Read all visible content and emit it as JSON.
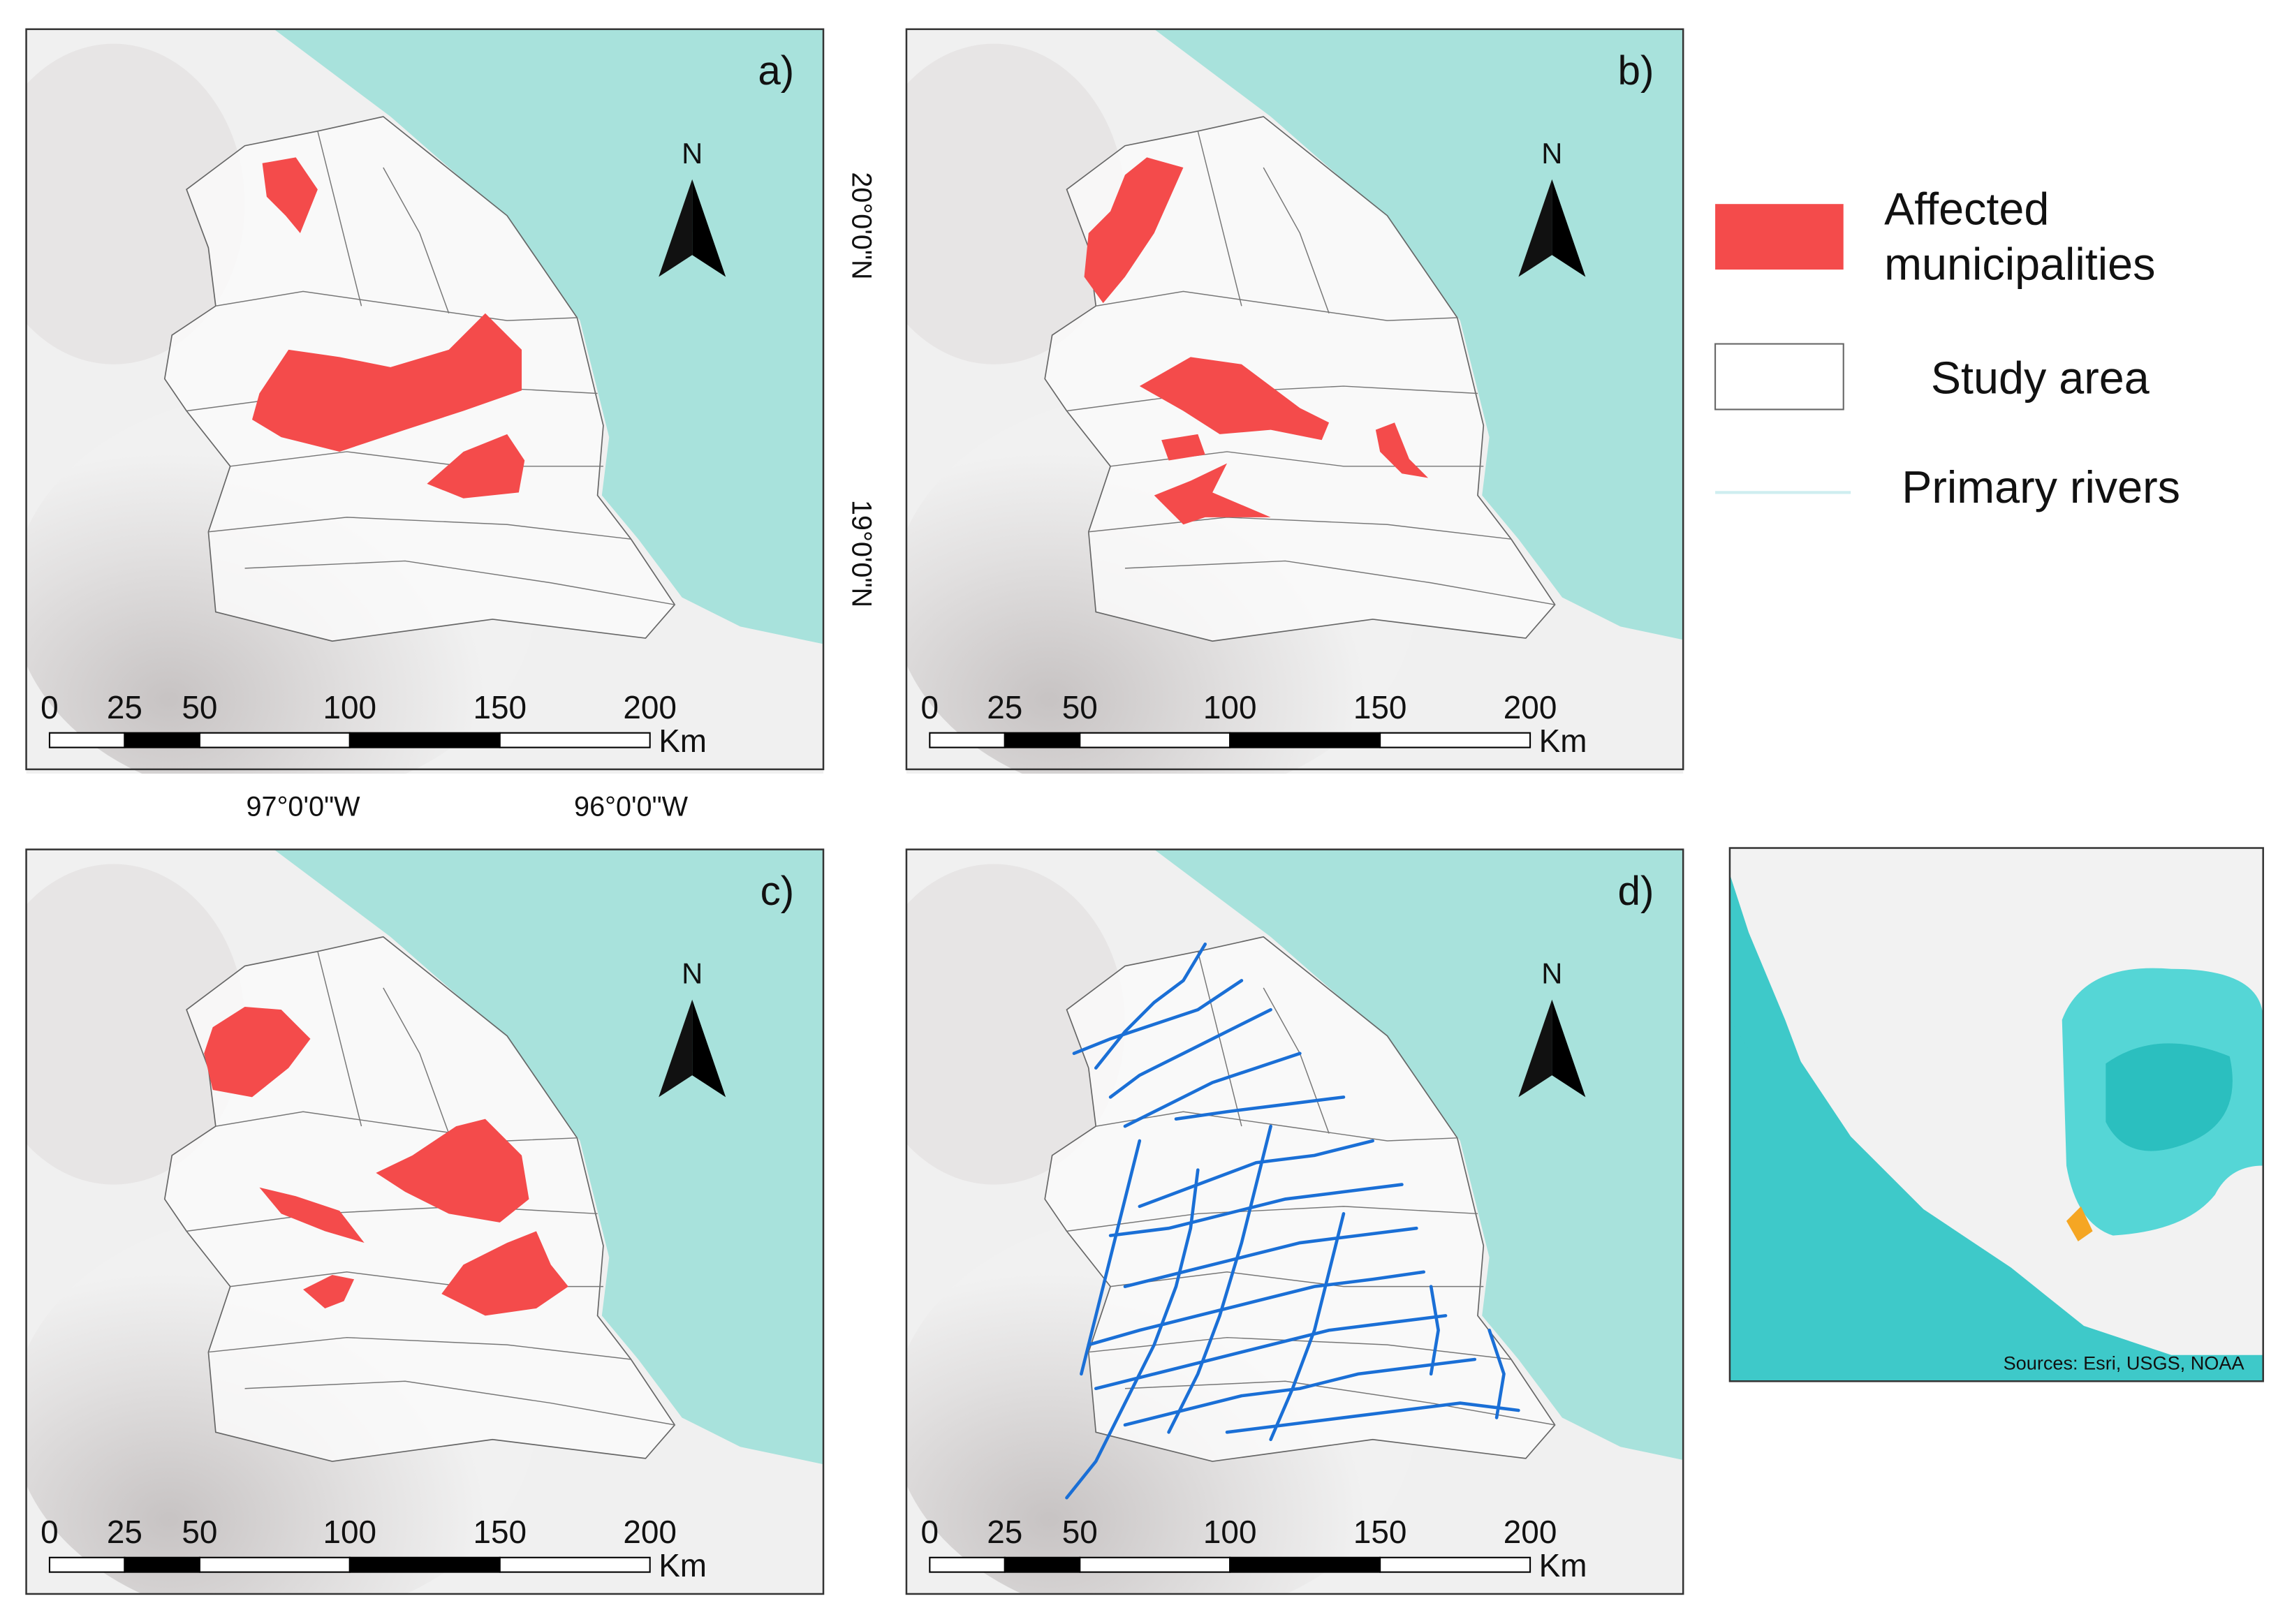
{
  "panels": [
    {
      "label": "a)"
    },
    {
      "label": "b)"
    },
    {
      "label": "c)"
    },
    {
      "label": "d)"
    }
  ],
  "north": "N",
  "scale_bar": {
    "ticks": [
      0,
      25,
      50,
      100,
      150,
      200
    ],
    "unit": "Km"
  },
  "coordinates": {
    "latitude": [
      "20°0'0\"N",
      "19°0'0\"N"
    ],
    "longitude": [
      "97°0'0\"W",
      "96°0'0\"W"
    ]
  },
  "legend": [
    {
      "label": "Affected municipalities"
    },
    {
      "label": "Study area"
    },
    {
      "label": "Primary rivers"
    }
  ],
  "inset": {
    "source": "Sources: Esri, USGS, NOAA"
  }
}
